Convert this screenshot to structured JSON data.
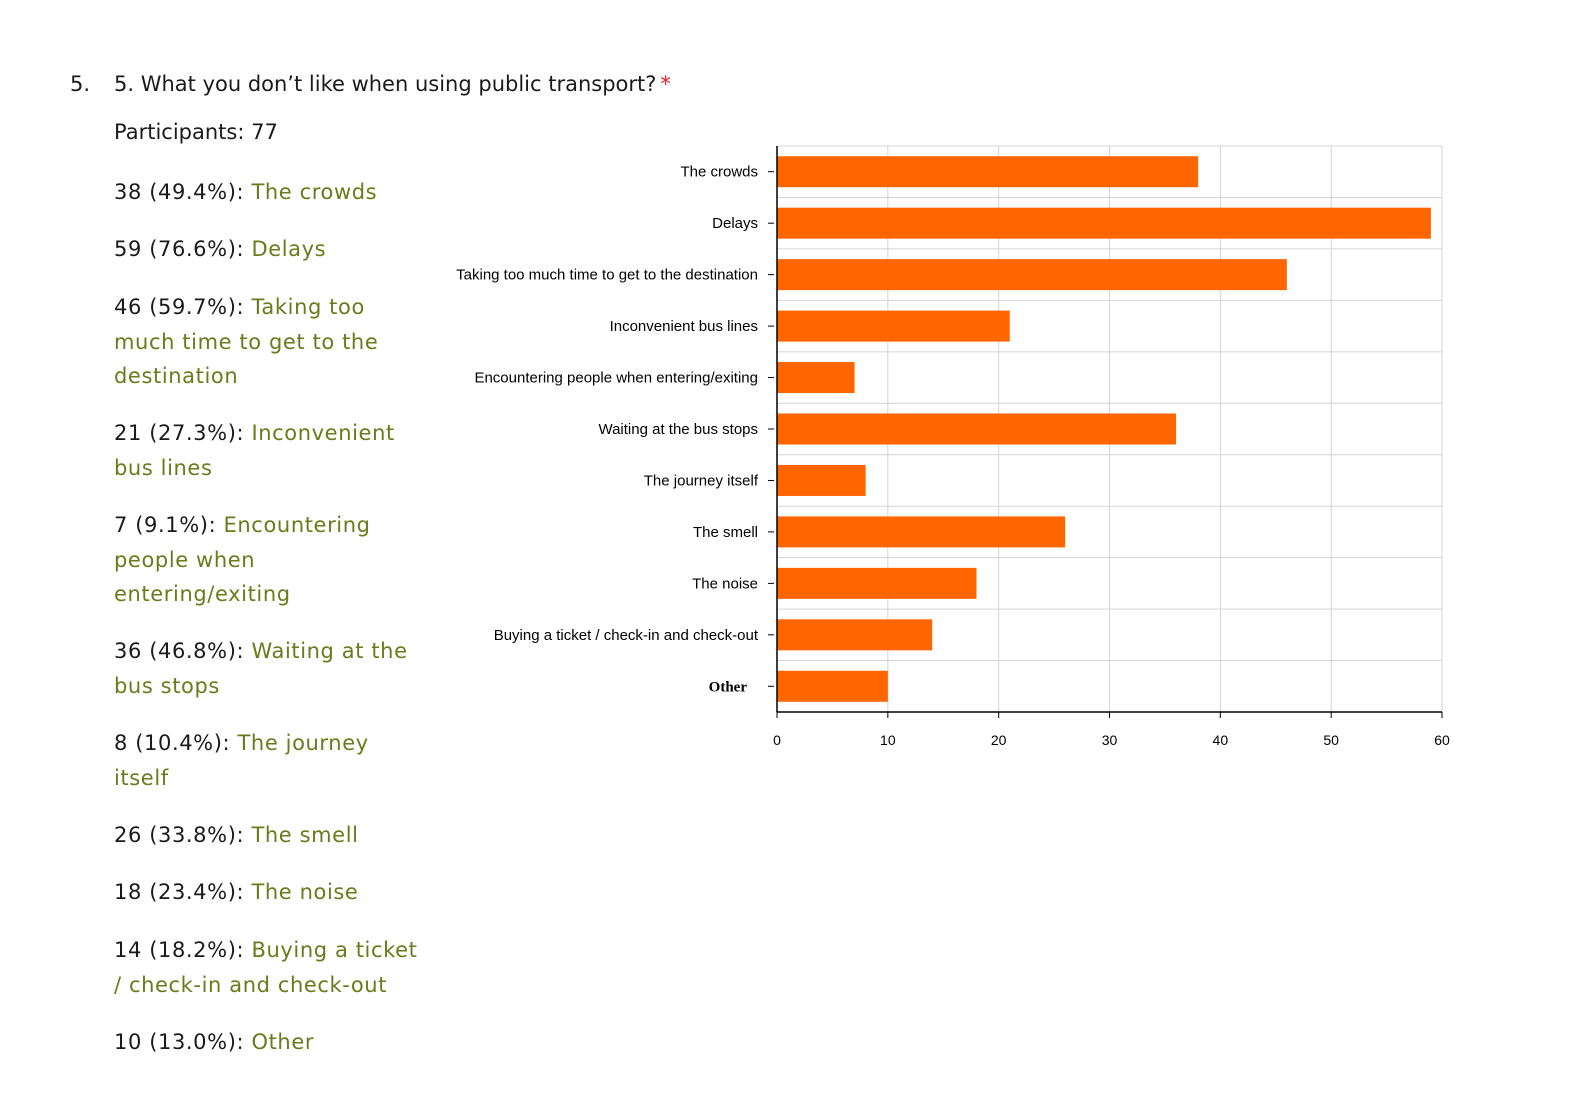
{
  "question": {
    "number": "5.",
    "text": "5. What you don’t like when using public transport?",
    "required_marker": "*"
  },
  "participants_text": "Participants: 77",
  "answers": [
    {
      "count_text": "38 (49.4%):",
      "label": "The crowds"
    },
    {
      "count_text": "59 (76.6%):",
      "label": "Delays"
    },
    {
      "count_text": "46 (59.7%):",
      "label": "Taking too much time to get to the destination"
    },
    {
      "count_text": "21 (27.3%):",
      "label": "Inconvenient bus lines"
    },
    {
      "count_text": "7 (9.1%):",
      "label": "Encountering people when entering/exiting"
    },
    {
      "count_text": "36 (46.8%):",
      "label": "Waiting at the bus stops"
    },
    {
      "count_text": "8 (10.4%):",
      "label": "The journey itself"
    },
    {
      "count_text": "26 (33.8%):",
      "label": "The smell"
    },
    {
      "count_text": "18 (23.4%):",
      "label": "The noise"
    },
    {
      "count_text": "14 (18.2%):",
      "label": "Buying a ticket / check-in and check-out"
    },
    {
      "count_text": "10 (13.0%):",
      "label": "Other"
    }
  ],
  "colors": {
    "bar": "#ff6600",
    "answer_label": "#6b7a1a",
    "required": "#e02020",
    "grid": "#d4d4d4"
  },
  "chart_data": {
    "type": "bar",
    "orientation": "horizontal",
    "categories": [
      "The crowds",
      "Delays",
      "Taking too much time to get to the destination",
      "Inconvenient bus lines",
      "Encountering people when entering/exiting",
      "Waiting at the bus stops",
      "The journey itself",
      "The smell",
      "The noise",
      "Buying a ticket / check-in and check-out",
      "Other"
    ],
    "values": [
      38,
      59,
      46,
      21,
      7,
      36,
      8,
      26,
      18,
      14,
      10
    ],
    "xlim": [
      0,
      60
    ],
    "x_ticks": [
      0,
      10,
      20,
      30,
      40,
      50,
      60
    ],
    "grid": true,
    "legend": false,
    "title": "",
    "xlabel": "",
    "ylabel": ""
  }
}
